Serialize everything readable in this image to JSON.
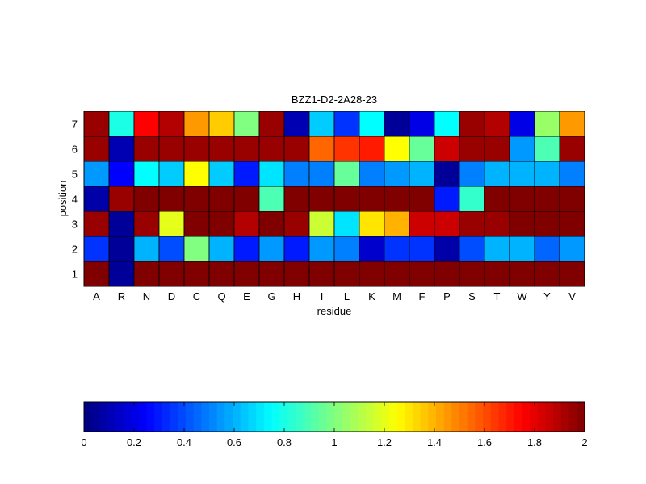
{
  "chart_data": {
    "type": "heatmap",
    "title": "BZZ1-D2-2A28-23",
    "xlabel": "residue",
    "ylabel": "position",
    "x_categories": [
      "A",
      "R",
      "N",
      "D",
      "C",
      "Q",
      "E",
      "G",
      "H",
      "I",
      "L",
      "K",
      "M",
      "F",
      "P",
      "S",
      "T",
      "W",
      "Y",
      "V"
    ],
    "y_categories": [
      "1",
      "2",
      "3",
      "4",
      "5",
      "6",
      "7"
    ],
    "value_range": [
      0,
      2
    ],
    "colormap": "jet",
    "grid": true,
    "colorbar": {
      "placement": "bottom",
      "ticks": [
        0,
        0.2,
        0.4,
        0.6,
        0.8,
        1,
        1.2,
        1.4,
        1.6,
        1.8,
        2
      ],
      "tick_labels": [
        "0",
        "0.2",
        "0.4",
        "0.6",
        "0.8",
        "1",
        "1.2",
        "1.4",
        "1.6",
        "1.8",
        "2"
      ]
    },
    "values": [
      [
        2.0,
        0.05,
        2.0,
        2.0,
        2.0,
        2.0,
        2.0,
        2.0,
        2.0,
        2.0,
        2.0,
        2.0,
        2.0,
        2.0,
        2.0,
        2.0,
        2.0,
        2.0,
        2.0,
        2.0
      ],
      [
        0.35,
        0.05,
        0.6,
        0.4,
        1.0,
        0.6,
        0.3,
        0.55,
        0.3,
        0.55,
        0.5,
        0.15,
        0.35,
        0.35,
        0.08,
        0.4,
        0.6,
        0.6,
        0.45,
        0.55
      ],
      [
        1.95,
        0.05,
        1.95,
        1.2,
        2.0,
        2.0,
        1.9,
        2.0,
        1.95,
        1.15,
        0.7,
        1.3,
        1.4,
        1.85,
        1.85,
        1.95,
        1.95,
        2.0,
        2.0,
        2.0
      ],
      [
        0.08,
        1.95,
        2.0,
        2.0,
        2.0,
        2.0,
        2.0,
        0.9,
        2.0,
        2.0,
        2.0,
        2.0,
        2.0,
        2.0,
        0.3,
        0.85,
        2.0,
        2.0,
        2.0,
        2.0
      ],
      [
        0.55,
        0.25,
        0.75,
        0.65,
        1.25,
        0.65,
        0.3,
        0.7,
        0.5,
        0.5,
        0.95,
        0.5,
        0.55,
        0.6,
        0.05,
        0.5,
        0.6,
        0.6,
        0.6,
        0.5
      ],
      [
        1.95,
        0.1,
        1.95,
        1.95,
        1.95,
        1.95,
        1.95,
        1.95,
        1.95,
        1.55,
        1.65,
        1.7,
        1.25,
        0.95,
        1.85,
        1.95,
        1.95,
        0.55,
        0.9,
        1.95
      ],
      [
        1.95,
        0.8,
        1.75,
        1.9,
        1.45,
        1.35,
        1.0,
        1.95,
        0.1,
        0.65,
        0.35,
        0.75,
        0.05,
        0.2,
        0.75,
        1.95,
        1.9,
        0.2,
        1.05,
        1.45
      ]
    ]
  }
}
